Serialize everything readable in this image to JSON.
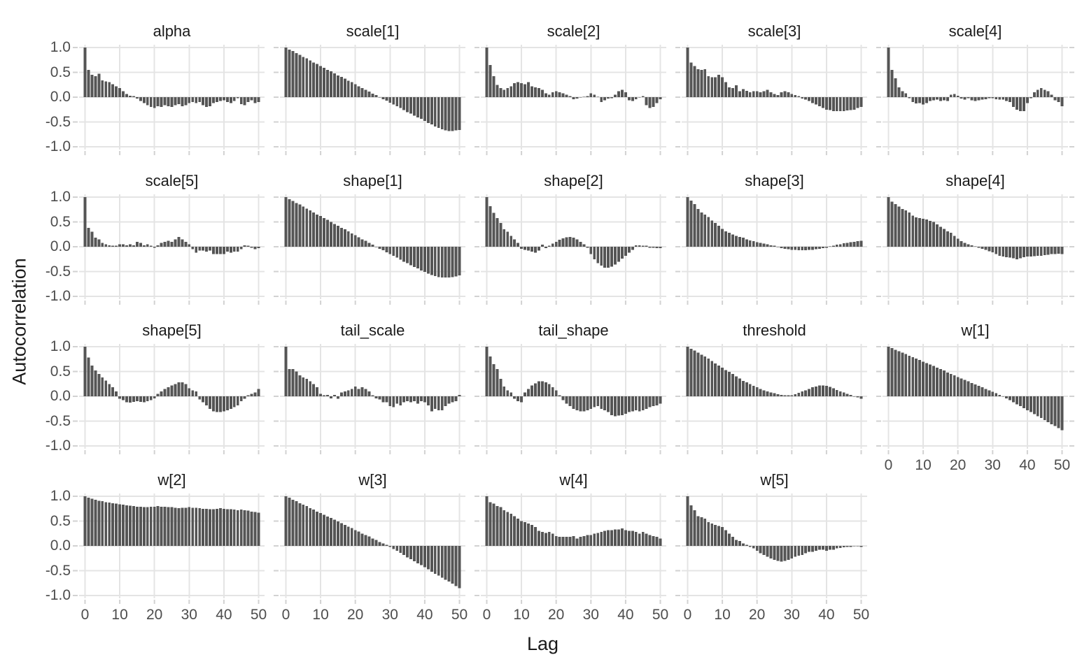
{
  "chart_data": {
    "type": "bar",
    "title": "",
    "xlabel": "Lag",
    "ylabel": "Autocorrelation",
    "grid": true,
    "legend": "none",
    "xlim": [
      0,
      50
    ],
    "ylim": [
      -1.0,
      1.0
    ],
    "x_ticks": [
      0,
      10,
      20,
      30,
      40,
      50
    ],
    "x_tick_labels": [
      "0",
      "10",
      "20",
      "30",
      "40",
      "50"
    ],
    "y_ticks": [
      1.0,
      0.5,
      0.0,
      -0.5,
      -1.0
    ],
    "y_tick_labels": [
      "1.0",
      "0.5",
      "0.0",
      "-0.5",
      "-1.0"
    ],
    "facet_layout": {
      "rows": 4,
      "cols": 5,
      "empty_cells": [
        [
          4,
          5
        ]
      ]
    },
    "colors": {
      "bar": "#555555",
      "gridline": "#e4e4e4",
      "tick_mark": "#d2d2d2",
      "tick_text": "#4d4d4d",
      "title_text": "#1a1a1a",
      "background": "#ffffff"
    },
    "facets": [
      {
        "label": "alpha",
        "values": [
          1.0,
          0.55,
          0.45,
          0.42,
          0.47,
          0.34,
          0.32,
          0.3,
          0.26,
          0.22,
          0.18,
          0.12,
          0.06,
          0.03,
          0.02,
          -0.03,
          -0.08,
          -0.12,
          -0.16,
          -0.2,
          -0.22,
          -0.18,
          -0.2,
          -0.16,
          -0.18,
          -0.2,
          -0.16,
          -0.14,
          -0.18,
          -0.16,
          -0.12,
          -0.1,
          -0.12,
          -0.1,
          -0.16,
          -0.2,
          -0.18,
          -0.12,
          -0.1,
          -0.08,
          -0.06,
          -0.1,
          -0.12,
          -0.08,
          -0.02,
          -0.14,
          -0.16,
          -0.1,
          -0.06,
          -0.12,
          -0.1
        ]
      },
      {
        "label": "scale[1]",
        "values": [
          1.0,
          0.96,
          0.93,
          0.89,
          0.85,
          0.81,
          0.78,
          0.74,
          0.7,
          0.67,
          0.63,
          0.59,
          0.55,
          0.52,
          0.48,
          0.44,
          0.41,
          0.37,
          0.33,
          0.3,
          0.26,
          0.22,
          0.18,
          0.15,
          0.11,
          0.07,
          0.04,
          0.0,
          -0.04,
          -0.07,
          -0.11,
          -0.15,
          -0.18,
          -0.22,
          -0.26,
          -0.3,
          -0.33,
          -0.37,
          -0.41,
          -0.44,
          -0.48,
          -0.52,
          -0.55,
          -0.59,
          -0.62,
          -0.65,
          -0.67,
          -0.68,
          -0.68,
          -0.67,
          -0.66
        ]
      },
      {
        "label": "scale[2]",
        "values": [
          1.0,
          0.65,
          0.42,
          0.25,
          0.18,
          0.15,
          0.18,
          0.22,
          0.28,
          0.3,
          0.28,
          0.26,
          0.3,
          0.22,
          0.2,
          0.18,
          0.15,
          0.08,
          0.05,
          0.1,
          0.12,
          0.1,
          0.08,
          0.05,
          0.02,
          -0.04,
          -0.03,
          -0.01,
          0.01,
          0.02,
          0.08,
          0.05,
          0.01,
          -0.1,
          -0.06,
          -0.03,
          -0.02,
          0.05,
          0.12,
          0.15,
          0.1,
          -0.06,
          -0.08,
          -0.04,
          -0.01,
          0.02,
          -0.16,
          -0.22,
          -0.2,
          -0.12,
          -0.04
        ]
      },
      {
        "label": "scale[3]",
        "values": [
          1.0,
          0.7,
          0.63,
          0.56,
          0.55,
          0.56,
          0.42,
          0.4,
          0.4,
          0.45,
          0.4,
          0.3,
          0.2,
          0.18,
          0.24,
          0.12,
          0.16,
          0.13,
          0.1,
          0.12,
          0.12,
          0.1,
          0.12,
          0.15,
          0.1,
          0.06,
          0.04,
          0.1,
          0.12,
          0.1,
          0.06,
          0.04,
          0.02,
          -0.03,
          -0.05,
          -0.08,
          -0.12,
          -0.15,
          -0.18,
          -0.22,
          -0.25,
          -0.26,
          -0.28,
          -0.28,
          -0.28,
          -0.28,
          -0.27,
          -0.26,
          -0.25,
          -0.22,
          -0.2
        ]
      },
      {
        "label": "scale[4]",
        "values": [
          1.0,
          0.55,
          0.38,
          0.2,
          0.12,
          0.08,
          -0.02,
          -0.1,
          -0.13,
          -0.12,
          -0.15,
          -0.12,
          -0.08,
          -0.06,
          -0.05,
          -0.08,
          -0.06,
          -0.08,
          0.05,
          0.06,
          0.03,
          -0.03,
          -0.05,
          -0.02,
          -0.06,
          -0.08,
          -0.06,
          -0.05,
          -0.04,
          -0.02,
          -0.02,
          -0.04,
          -0.05,
          -0.05,
          -0.08,
          -0.1,
          -0.2,
          -0.25,
          -0.28,
          -0.28,
          -0.12,
          -0.02,
          0.1,
          0.15,
          0.18,
          0.15,
          0.12,
          0.05,
          -0.06,
          -0.1,
          -0.18
        ]
      },
      {
        "label": "scale[5]",
        "values": [
          1.0,
          0.38,
          0.3,
          0.18,
          0.15,
          0.08,
          0.05,
          0.03,
          0.02,
          0.02,
          0.05,
          0.05,
          0.03,
          0.05,
          0.03,
          0.1,
          0.08,
          0.03,
          0.05,
          0.02,
          -0.02,
          0.03,
          0.08,
          0.1,
          0.12,
          0.1,
          0.15,
          0.2,
          0.15,
          0.1,
          0.05,
          -0.05,
          -0.12,
          -0.08,
          -0.08,
          -0.1,
          -0.08,
          -0.15,
          -0.15,
          -0.15,
          -0.15,
          -0.1,
          -0.12,
          -0.1,
          -0.1,
          -0.05,
          0.03,
          0.02,
          -0.02,
          -0.05,
          -0.03
        ]
      },
      {
        "label": "shape[1]",
        "values": [
          1.0,
          0.96,
          0.92,
          0.88,
          0.85,
          0.81,
          0.77,
          0.73,
          0.69,
          0.65,
          0.62,
          0.58,
          0.54,
          0.5,
          0.46,
          0.42,
          0.38,
          0.35,
          0.31,
          0.27,
          0.23,
          0.19,
          0.15,
          0.12,
          0.08,
          0.04,
          0.0,
          -0.04,
          -0.07,
          -0.11,
          -0.15,
          -0.18,
          -0.22,
          -0.26,
          -0.3,
          -0.33,
          -0.37,
          -0.41,
          -0.44,
          -0.48,
          -0.51,
          -0.54,
          -0.57,
          -0.59,
          -0.61,
          -0.62,
          -0.62,
          -0.62,
          -0.61,
          -0.6,
          -0.58
        ]
      },
      {
        "label": "shape[2]",
        "values": [
          1.0,
          0.82,
          0.68,
          0.58,
          0.48,
          0.35,
          0.3,
          0.22,
          0.15,
          0.08,
          -0.04,
          -0.06,
          -0.08,
          -0.1,
          -0.12,
          -0.08,
          0.04,
          -0.03,
          0.02,
          0.06,
          0.1,
          0.14,
          0.17,
          0.19,
          0.2,
          0.18,
          0.15,
          0.1,
          0.05,
          -0.02,
          -0.15,
          -0.25,
          -0.33,
          -0.38,
          -0.42,
          -0.42,
          -0.4,
          -0.36,
          -0.3,
          -0.24,
          -0.18,
          -0.12,
          -0.06,
          0.03,
          0.03,
          0.02,
          0.02,
          -0.02,
          -0.02,
          -0.03,
          -0.03
        ]
      },
      {
        "label": "shape[3]",
        "values": [
          1.0,
          0.93,
          0.86,
          0.76,
          0.69,
          0.65,
          0.6,
          0.53,
          0.48,
          0.42,
          0.36,
          0.31,
          0.28,
          0.25,
          0.22,
          0.2,
          0.18,
          0.15,
          0.13,
          0.11,
          0.09,
          0.08,
          0.06,
          0.05,
          0.03,
          0.02,
          -0.01,
          -0.03,
          -0.04,
          -0.05,
          -0.06,
          -0.06,
          -0.07,
          -0.07,
          -0.07,
          -0.06,
          -0.06,
          -0.05,
          -0.04,
          -0.03,
          -0.02,
          0.01,
          0.02,
          0.04,
          0.05,
          0.07,
          0.08,
          0.09,
          0.1,
          0.11,
          0.12
        ]
      },
      {
        "label": "shape[4]",
        "values": [
          1.0,
          0.91,
          0.86,
          0.81,
          0.76,
          0.73,
          0.69,
          0.63,
          0.59,
          0.58,
          0.56,
          0.55,
          0.52,
          0.5,
          0.45,
          0.4,
          0.36,
          0.31,
          0.28,
          0.22,
          0.16,
          0.11,
          0.08,
          0.05,
          0.03,
          0.01,
          -0.02,
          -0.04,
          -0.06,
          -0.09,
          -0.11,
          -0.15,
          -0.18,
          -0.2,
          -0.21,
          -0.22,
          -0.23,
          -0.25,
          -0.23,
          -0.21,
          -0.2,
          -0.2,
          -0.19,
          -0.18,
          -0.18,
          -0.17,
          -0.16,
          -0.15,
          -0.15,
          -0.14,
          -0.15
        ]
      },
      {
        "label": "shape[5]",
        "values": [
          1.0,
          0.78,
          0.62,
          0.52,
          0.45,
          0.38,
          0.32,
          0.25,
          0.18,
          0.1,
          -0.05,
          -0.08,
          -0.12,
          -0.13,
          -0.11,
          -0.1,
          -0.11,
          -0.12,
          -0.1,
          -0.08,
          -0.04,
          0.05,
          0.1,
          0.15,
          0.18,
          0.22,
          0.25,
          0.28,
          0.28,
          0.25,
          0.16,
          0.12,
          0.1,
          -0.06,
          -0.12,
          -0.18,
          -0.25,
          -0.3,
          -0.32,
          -0.32,
          -0.3,
          -0.28,
          -0.25,
          -0.22,
          -0.18,
          -0.1,
          -0.05,
          0.02,
          0.05,
          0.08,
          0.15
        ]
      },
      {
        "label": "tail_scale",
        "values": [
          1.0,
          0.55,
          0.55,
          0.5,
          0.42,
          0.38,
          0.35,
          0.3,
          0.25,
          0.18,
          0.05,
          0.02,
          0.03,
          -0.04,
          0.03,
          -0.05,
          0.08,
          0.1,
          0.12,
          0.15,
          0.2,
          0.15,
          0.18,
          0.15,
          0.1,
          0.02,
          -0.04,
          -0.06,
          -0.12,
          -0.12,
          -0.2,
          -0.22,
          -0.15,
          -0.18,
          -0.12,
          -0.1,
          -0.12,
          -0.1,
          -0.15,
          -0.1,
          -0.12,
          -0.18,
          -0.3,
          -0.25,
          -0.28,
          -0.28,
          -0.2,
          -0.15,
          -0.12,
          -0.1,
          0.03
        ]
      },
      {
        "label": "tail_shape",
        "values": [
          1.0,
          0.8,
          0.65,
          0.55,
          0.35,
          0.2,
          0.12,
          0.08,
          -0.05,
          -0.1,
          -0.12,
          0.08,
          0.15,
          0.22,
          0.26,
          0.3,
          0.3,
          0.28,
          0.25,
          0.18,
          0.12,
          0.02,
          -0.08,
          -0.15,
          -0.2,
          -0.25,
          -0.28,
          -0.3,
          -0.3,
          -0.28,
          -0.25,
          -0.22,
          -0.2,
          -0.25,
          -0.28,
          -0.32,
          -0.38,
          -0.4,
          -0.39,
          -0.38,
          -0.35,
          -0.32,
          -0.3,
          -0.28,
          -0.3,
          -0.28,
          -0.25,
          -0.22,
          -0.2,
          -0.18,
          -0.15
        ]
      },
      {
        "label": "threshold",
        "values": [
          1.0,
          0.96,
          0.92,
          0.88,
          0.84,
          0.8,
          0.76,
          0.71,
          0.66,
          0.62,
          0.58,
          0.53,
          0.49,
          0.45,
          0.4,
          0.36,
          0.31,
          0.28,
          0.25,
          0.21,
          0.18,
          0.15,
          0.12,
          0.1,
          0.08,
          0.06,
          0.04,
          0.03,
          0.02,
          0.02,
          0.02,
          0.04,
          0.07,
          0.1,
          0.12,
          0.15,
          0.18,
          0.2,
          0.22,
          0.22,
          0.21,
          0.19,
          0.16,
          0.13,
          0.1,
          0.08,
          0.05,
          0.03,
          0.0,
          -0.02,
          -0.05
        ]
      },
      {
        "label": "w[1]",
        "values": [
          1.0,
          0.97,
          0.94,
          0.91,
          0.88,
          0.85,
          0.82,
          0.79,
          0.76,
          0.73,
          0.7,
          0.67,
          0.64,
          0.61,
          0.58,
          0.55,
          0.52,
          0.48,
          0.45,
          0.42,
          0.39,
          0.36,
          0.33,
          0.3,
          0.27,
          0.24,
          0.21,
          0.18,
          0.15,
          0.12,
          0.09,
          0.06,
          0.03,
          0.0,
          -0.04,
          -0.08,
          -0.12,
          -0.16,
          -0.2,
          -0.24,
          -0.28,
          -0.32,
          -0.36,
          -0.4,
          -0.44,
          -0.48,
          -0.52,
          -0.56,
          -0.6,
          -0.64,
          -0.68
        ]
      },
      {
        "label": "w[2]",
        "values": [
          1.0,
          0.97,
          0.95,
          0.93,
          0.91,
          0.9,
          0.88,
          0.87,
          0.86,
          0.85,
          0.84,
          0.83,
          0.82,
          0.81,
          0.8,
          0.79,
          0.79,
          0.78,
          0.78,
          0.79,
          0.79,
          0.8,
          0.79,
          0.79,
          0.78,
          0.78,
          0.77,
          0.76,
          0.77,
          0.77,
          0.78,
          0.77,
          0.77,
          0.76,
          0.75,
          0.75,
          0.74,
          0.74,
          0.75,
          0.76,
          0.75,
          0.74,
          0.74,
          0.73,
          0.72,
          0.73,
          0.72,
          0.71,
          0.69,
          0.68,
          0.67
        ]
      },
      {
        "label": "w[3]",
        "values": [
          1.0,
          0.97,
          0.93,
          0.9,
          0.86,
          0.83,
          0.8,
          0.76,
          0.73,
          0.69,
          0.66,
          0.63,
          0.59,
          0.56,
          0.53,
          0.49,
          0.46,
          0.42,
          0.39,
          0.36,
          0.32,
          0.29,
          0.25,
          0.22,
          0.19,
          0.15,
          0.12,
          0.08,
          0.05,
          0.02,
          -0.02,
          -0.06,
          -0.1,
          -0.14,
          -0.18,
          -0.23,
          -0.27,
          -0.31,
          -0.35,
          -0.39,
          -0.43,
          -0.47,
          -0.52,
          -0.56,
          -0.6,
          -0.64,
          -0.68,
          -0.72,
          -0.76,
          -0.81,
          -0.85
        ]
      },
      {
        "label": "w[4]",
        "values": [
          1.0,
          0.88,
          0.85,
          0.8,
          0.78,
          0.72,
          0.68,
          0.65,
          0.6,
          0.55,
          0.5,
          0.48,
          0.45,
          0.42,
          0.38,
          0.3,
          0.28,
          0.26,
          0.28,
          0.25,
          0.2,
          0.18,
          0.18,
          0.18,
          0.18,
          0.2,
          0.15,
          0.18,
          0.2,
          0.22,
          0.22,
          0.25,
          0.26,
          0.28,
          0.3,
          0.32,
          0.32,
          0.33,
          0.33,
          0.35,
          0.32,
          0.3,
          0.3,
          0.28,
          0.25,
          0.28,
          0.25,
          0.22,
          0.2,
          0.18,
          0.15
        ]
      },
      {
        "label": "w[5]",
        "values": [
          1.0,
          0.82,
          0.72,
          0.6,
          0.58,
          0.55,
          0.48,
          0.45,
          0.42,
          0.4,
          0.38,
          0.32,
          0.25,
          0.18,
          0.12,
          0.1,
          0.05,
          0.02,
          -0.02,
          -0.05,
          -0.1,
          -0.15,
          -0.18,
          -0.22,
          -0.25,
          -0.28,
          -0.3,
          -0.32,
          -0.3,
          -0.28,
          -0.25,
          -0.22,
          -0.2,
          -0.18,
          -0.15,
          -0.12,
          -0.12,
          -0.1,
          -0.08,
          -0.08,
          -0.1,
          -0.08,
          -0.08,
          -0.05,
          -0.04,
          -0.03,
          -0.02,
          -0.02,
          -0.01,
          -0.01,
          -0.02
        ]
      }
    ]
  }
}
